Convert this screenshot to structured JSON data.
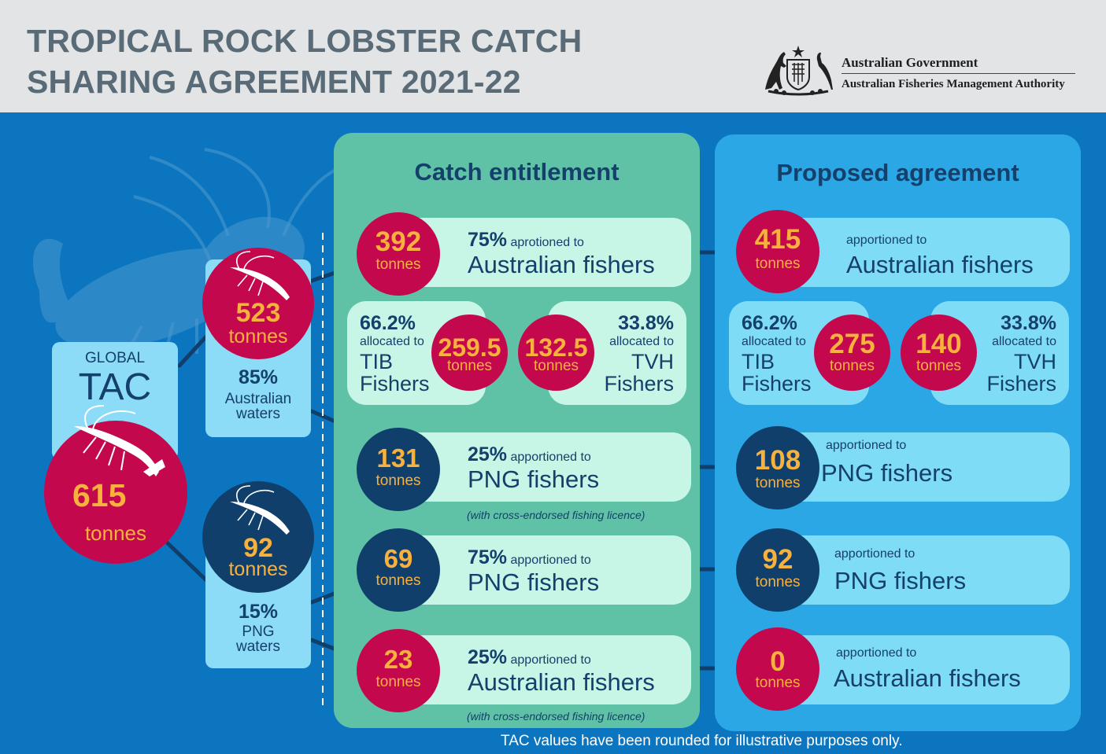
{
  "header": {
    "title_line1": "TROPICAL ROCK LOBSTER CATCH",
    "title_line2": "SHARING AGREEMENT 2021-22",
    "gov_name": "Australian Government",
    "agency_name": "Australian Fisheries Management Authority"
  },
  "global": {
    "label": "GLOBAL",
    "tac": "TAC",
    "value": "615",
    "unit": "tonnes"
  },
  "aus_waters": {
    "value": "523",
    "unit": "tonnes",
    "pct": "85%",
    "label_line1": "Australian",
    "label_line2": "waters"
  },
  "png_waters": {
    "value": "92",
    "unit": "tonnes",
    "pct": "15%",
    "label_line1": "PNG",
    "label_line2": "waters"
  },
  "catch_entitlement": {
    "title": "Catch entitlement",
    "rows": [
      {
        "value": "392",
        "unit": "tonnes",
        "pct": "75%",
        "verb": "aprotioned to",
        "who": "Australian fishers"
      },
      {
        "value": "131",
        "unit": "tonnes",
        "pct": "25%",
        "verb": "apportioned to",
        "who": "PNG fishers",
        "note": "(with cross-endorsed fishing licence)"
      },
      {
        "value": "69",
        "unit": "tonnes",
        "pct": "75%",
        "verb": "apportioned to",
        "who": "PNG fishers"
      },
      {
        "value": "23",
        "unit": "tonnes",
        "pct": "25%",
        "verb": "apportioned to",
        "who": "Australian fishers",
        "note": "(with cross-endorsed fishing licence)"
      }
    ],
    "split": {
      "tib": {
        "pct": "66.2%",
        "verb": "allocated to",
        "line1": "TIB",
        "line2": "Fishers",
        "value": "259.5",
        "unit": "tonnes"
      },
      "tvh": {
        "pct": "33.8%",
        "verb": "allocated to",
        "line1": "TVH",
        "line2": "Fishers",
        "value": "132.5",
        "unit": "tonnes"
      }
    }
  },
  "proposed_agreement": {
    "title": "Proposed agreement",
    "rows": [
      {
        "value": "415",
        "unit": "tonnes",
        "verb": "apportioned to",
        "who": "Australian fishers"
      },
      {
        "value": "108",
        "unit": "tonnes",
        "verb": "apportioned to",
        "who": "PNG fishers"
      },
      {
        "value": "92",
        "unit": "tonnes",
        "verb": "apportioned to",
        "who": "PNG fishers"
      },
      {
        "value": "0",
        "unit": "tonnes",
        "verb": "apportioned to",
        "who": "Australian fishers"
      }
    ],
    "split": {
      "tib": {
        "pct": "66.2%",
        "verb": "allocated to",
        "line1": "TIB",
        "line2": "Fishers",
        "value": "275",
        "unit": "tonnes"
      },
      "tvh": {
        "pct": "33.8%",
        "verb": "allocated to",
        "line1": "TVH",
        "line2": "Fishers",
        "value": "140",
        "unit": "tonnes"
      }
    }
  },
  "footer": "TAC values have been rounded for illustrative purposes only.",
  "icons": {
    "crest": "coat-of-arms-icon",
    "lobster": "lobster-icon"
  },
  "colors": {
    "background": "#0b76bf",
    "header": "#e3e4e6",
    "crimson": "#c4084e",
    "navy": "#103f6c",
    "orange_text": "#f7b13c",
    "green_panel": "#5fc2a7",
    "blue_panel": "#2aa7e4",
    "mint_pill": "#c7f5e6",
    "cyan_pill": "#7fdcf7"
  }
}
